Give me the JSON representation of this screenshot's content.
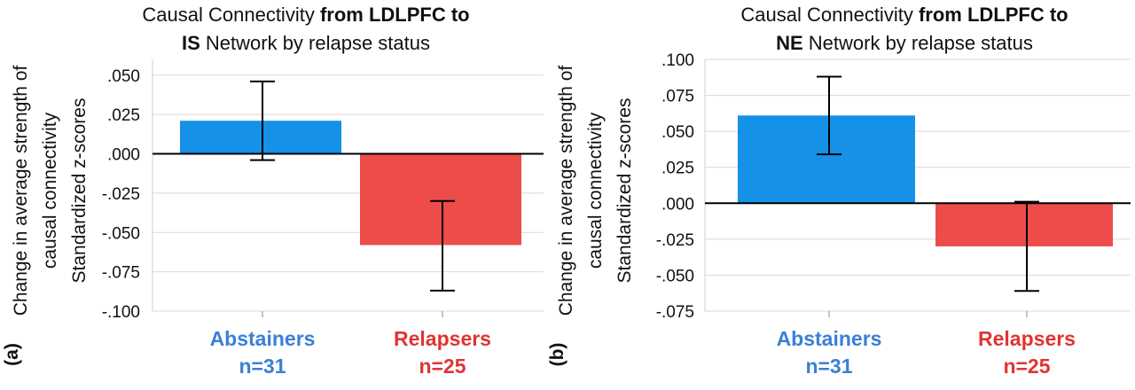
{
  "chart_data": [
    {
      "type": "bar",
      "panel_label": "(a)",
      "title_lines": [
        [
          {
            "text": "Causal Connectivity ",
            "bold": false
          },
          {
            "text": "from LDLPFC to",
            "bold": true
          }
        ],
        [
          {
            "text": "IS",
            "bold": true
          },
          {
            "text": " Network by relapse status",
            "bold": false
          }
        ]
      ],
      "ylabel_lines": [
        "Change in average strength of",
        "causal connectivity",
        "Standardized z-scores"
      ],
      "ylim": [
        -0.1,
        0.06
      ],
      "yticks": [
        ".050",
        ".025",
        ".000",
        "-.025",
        "-.050",
        "-.075",
        "-.100"
      ],
      "ytick_values": [
        0.05,
        0.025,
        0.0,
        -0.025,
        -0.05,
        -0.075,
        -0.1
      ],
      "categories": [
        "Abstainers",
        "Relapsers"
      ],
      "category_sublabels": [
        "n=31",
        "n=25"
      ],
      "category_colors": [
        "#3b7fd4",
        "#e03434"
      ],
      "bar_colors": [
        "#1591e8",
        "#ee4b4b"
      ],
      "values": [
        0.021,
        -0.058
      ],
      "error_low": [
        -0.004,
        -0.087
      ],
      "error_high": [
        0.046,
        -0.03
      ],
      "grid": true
    },
    {
      "type": "bar",
      "panel_label": "(b)",
      "title_lines": [
        [
          {
            "text": "Causal Connectivity ",
            "bold": false
          },
          {
            "text": "from LDLPFC to",
            "bold": true
          }
        ],
        [
          {
            "text": "NE",
            "bold": true
          },
          {
            "text": " Network by relapse status",
            "bold": false
          }
        ]
      ],
      "ylabel_lines": [
        "Change in average strength of",
        "causal connectivity",
        "Standardized z-scores"
      ],
      "ylim": [
        -0.075,
        0.1
      ],
      "yticks": [
        ".100",
        ".075",
        ".050",
        ".025",
        ".000",
        "-.025",
        "-.050",
        "-.075"
      ],
      "ytick_values": [
        0.1,
        0.075,
        0.05,
        0.025,
        0.0,
        -0.025,
        -0.05,
        -0.075
      ],
      "categories": [
        "Abstainers",
        "Relapsers"
      ],
      "category_sublabels": [
        "n=31",
        "n=25"
      ],
      "category_colors": [
        "#3b7fd4",
        "#e03434"
      ],
      "bar_colors": [
        "#1591e8",
        "#ee4b4b"
      ],
      "values": [
        0.061,
        -0.03
      ],
      "error_low": [
        0.034,
        -0.061
      ],
      "error_high": [
        0.088,
        0.001
      ],
      "grid": true
    }
  ]
}
